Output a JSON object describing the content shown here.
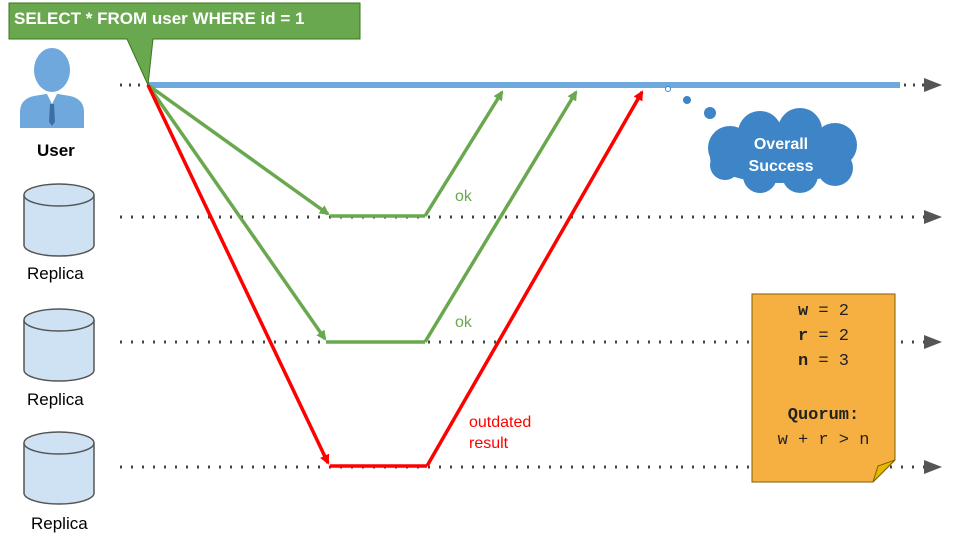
{
  "query": "SELECT * FROM user WHERE id = 1",
  "actors": {
    "user": "User",
    "replicas": [
      "Replica",
      "Replica",
      "Replica"
    ]
  },
  "responses": {
    "replica1": "ok",
    "replica2": "ok",
    "replica3_line1": "outdated",
    "replica3_line2": "result"
  },
  "thought": {
    "line1": "Overall",
    "line2": "Success"
  },
  "note": {
    "w_key": "w",
    "w_value": "2",
    "r_key": "r",
    "r_value": "2",
    "n_key": "n",
    "n_value": "3",
    "equals": "=",
    "title": "Quorum:",
    "formula": "w + r > n"
  },
  "colors": {
    "callout": "#6aa84f",
    "ok_path": "#6aa84f",
    "outdated_path": "#ff0000",
    "timeline_user": "#6fa8dc",
    "cloud": "#3d85c6",
    "note": "#f6b042",
    "cylinder_fill": "#cfe2f3",
    "user_icon": "#6fa8dc"
  }
}
